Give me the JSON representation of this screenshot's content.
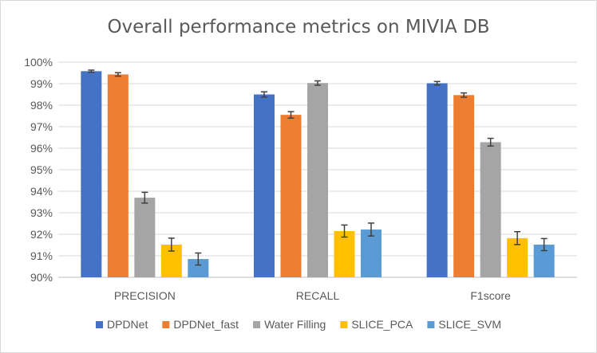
{
  "chart_data": {
    "type": "bar",
    "title": "Overall performance metrics on MIVIA DB",
    "xlabel": "",
    "ylabel": "",
    "ylim": [
      90,
      100
    ],
    "ytick_step": 1,
    "ytick_labels": [
      "90%",
      "91%",
      "92%",
      "93%",
      "94%",
      "95%",
      "96%",
      "97%",
      "98%",
      "99%",
      "100%"
    ],
    "categories": [
      "PRECISION",
      "RECALL",
      "F1score"
    ],
    "grid": true,
    "legend_position": "bottom",
    "series": [
      {
        "name": "DPDNet",
        "color": "#4472C4",
        "values": [
          99.58,
          98.5,
          99.02
        ],
        "errors": [
          0.05,
          0.12,
          0.08
        ]
      },
      {
        "name": "DPDNet_fast",
        "color": "#ED7D31",
        "values": [
          99.43,
          97.55,
          98.47
        ],
        "errors": [
          0.08,
          0.15,
          0.1
        ]
      },
      {
        "name": "Water Filling",
        "color": "#A5A5A5",
        "values": [
          93.7,
          99.03,
          96.28
        ],
        "errors": [
          0.25,
          0.1,
          0.18
        ]
      },
      {
        "name": "SLICE_PCA",
        "color": "#FFC000",
        "values": [
          91.52,
          92.15,
          91.82
        ],
        "errors": [
          0.3,
          0.28,
          0.3
        ]
      },
      {
        "name": "SLICE_SVM",
        "color": "#5B9BD5",
        "values": [
          90.85,
          92.22,
          91.52
        ],
        "errors": [
          0.28,
          0.3,
          0.28
        ]
      }
    ]
  }
}
